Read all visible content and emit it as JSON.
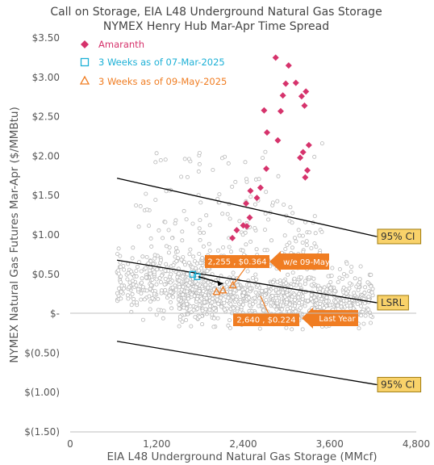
{
  "chart_data": {
    "type": "scatter",
    "title": "Call on Storage, EIA L48 Underground Natural Gas Storage",
    "subtitle": "NYMEX Henry Hub Mar-Apr Time Spread",
    "xlabel": "EIA L48 Underground Natural Gas Storage (MMcf)",
    "ylabel": "NYMEX Natural Gas Futures Mar-Apr ($/MMBtu)",
    "xlim": [
      0,
      4800
    ],
    "ylim": [
      -1.5,
      3.5
    ],
    "x_ticks": [
      {
        "value": 0,
        "label": "0"
      },
      {
        "value": 1200,
        "label": "1,200"
      },
      {
        "value": 2400,
        "label": "2,400"
      },
      {
        "value": 3600,
        "label": "3,600"
      },
      {
        "value": 4800,
        "label": "4,800"
      }
    ],
    "y_ticks": [
      {
        "value": 3.5,
        "label": "$3.50"
      },
      {
        "value": 3.0,
        "label": "$3.00"
      },
      {
        "value": 2.5,
        "label": "$2.50"
      },
      {
        "value": 2.0,
        "label": "$2.00"
      },
      {
        "value": 1.5,
        "label": "$1.50"
      },
      {
        "value": 1.0,
        "label": "$1.00"
      },
      {
        "value": 0.5,
        "label": "$0.50"
      },
      {
        "value": 0.0,
        "label": "$-"
      },
      {
        "value": -0.5,
        "label": "$(0.50)"
      },
      {
        "value": -1.0,
        "label": "$(1.00)"
      },
      {
        "value": -1.5,
        "label": "$(1.50)"
      }
    ],
    "grid": false,
    "legend_position": "top-left",
    "series": [
      {
        "name": "Amaranth",
        "marker": "diamond",
        "color": "#d6336c",
        "points": [
          [
            2850,
            3.25
          ],
          [
            3030,
            3.15
          ],
          [
            3130,
            2.93
          ],
          [
            2990,
            2.92
          ],
          [
            3270,
            2.82
          ],
          [
            3210,
            2.76
          ],
          [
            2950,
            2.77
          ],
          [
            3250,
            2.64
          ],
          [
            2690,
            2.58
          ],
          [
            2920,
            2.57
          ],
          [
            2730,
            2.3
          ],
          [
            2880,
            2.2
          ],
          [
            3310,
            2.14
          ],
          [
            3230,
            2.05
          ],
          [
            3190,
            1.98
          ],
          [
            2720,
            1.84
          ],
          [
            3290,
            1.82
          ],
          [
            3260,
            1.73
          ],
          [
            2640,
            1.6
          ],
          [
            2500,
            1.56
          ],
          [
            2590,
            1.47
          ],
          [
            2440,
            1.4
          ],
          [
            2490,
            1.22
          ],
          [
            2400,
            1.12
          ],
          [
            2450,
            1.11
          ],
          [
            2310,
            1.06
          ],
          [
            2250,
            0.96
          ]
        ]
      },
      {
        "name": "3 Weeks as of 07-Mar-2025",
        "marker": "square",
        "color": "#1cb0d6",
        "points": [
          [
            1700,
            0.5
          ],
          [
            1760,
            0.47
          ]
        ]
      },
      {
        "name": "3 Weeks as of 09-May-2025",
        "marker": "triangle",
        "color": "#f07d22",
        "points": [
          [
            2255,
            0.364
          ],
          [
            2120,
            0.3
          ],
          [
            2030,
            0.28
          ]
        ]
      }
    ],
    "background_series": {
      "description": "",
      "marker": "circle",
      "color": "#b8b8b8",
      "count": 1400
    },
    "lines": [
      {
        "label": "95% CI",
        "from": [
          650,
          1.72
        ],
        "to": [
          4250,
          0.98
        ],
        "color": "#000000"
      },
      {
        "label": "LSRL",
        "from": [
          650,
          0.68
        ],
        "to": [
          4250,
          0.14
        ],
        "color": "#000000"
      },
      {
        "label": "95% CI",
        "from": [
          650,
          -0.35
        ],
        "to": [
          4250,
          -0.9
        ],
        "color": "#000000"
      }
    ],
    "annotations": [
      {
        "text": "2,255 , $0.364",
        "x": 2255,
        "y": 0.364,
        "color": "#f07d22"
      },
      {
        "text": "w/e 09-May",
        "x": 2255,
        "y": 0.364,
        "color": "#f07d22"
      },
      {
        "text": "2,640 , $0.224",
        "x": 2640,
        "y": 0.224,
        "color": "#f07d22"
      },
      {
        "text": "Last Year",
        "x": 2640,
        "y": 0.224,
        "color": "#f07d22"
      }
    ],
    "colors": {
      "amaranth": "#d6336c",
      "mar2025": "#1cb0d6",
      "may2025": "#f07d22",
      "scatter": "#b8b8b8",
      "label_box_fill": "#f9d26a",
      "label_box_stroke": "#a07c10"
    }
  }
}
